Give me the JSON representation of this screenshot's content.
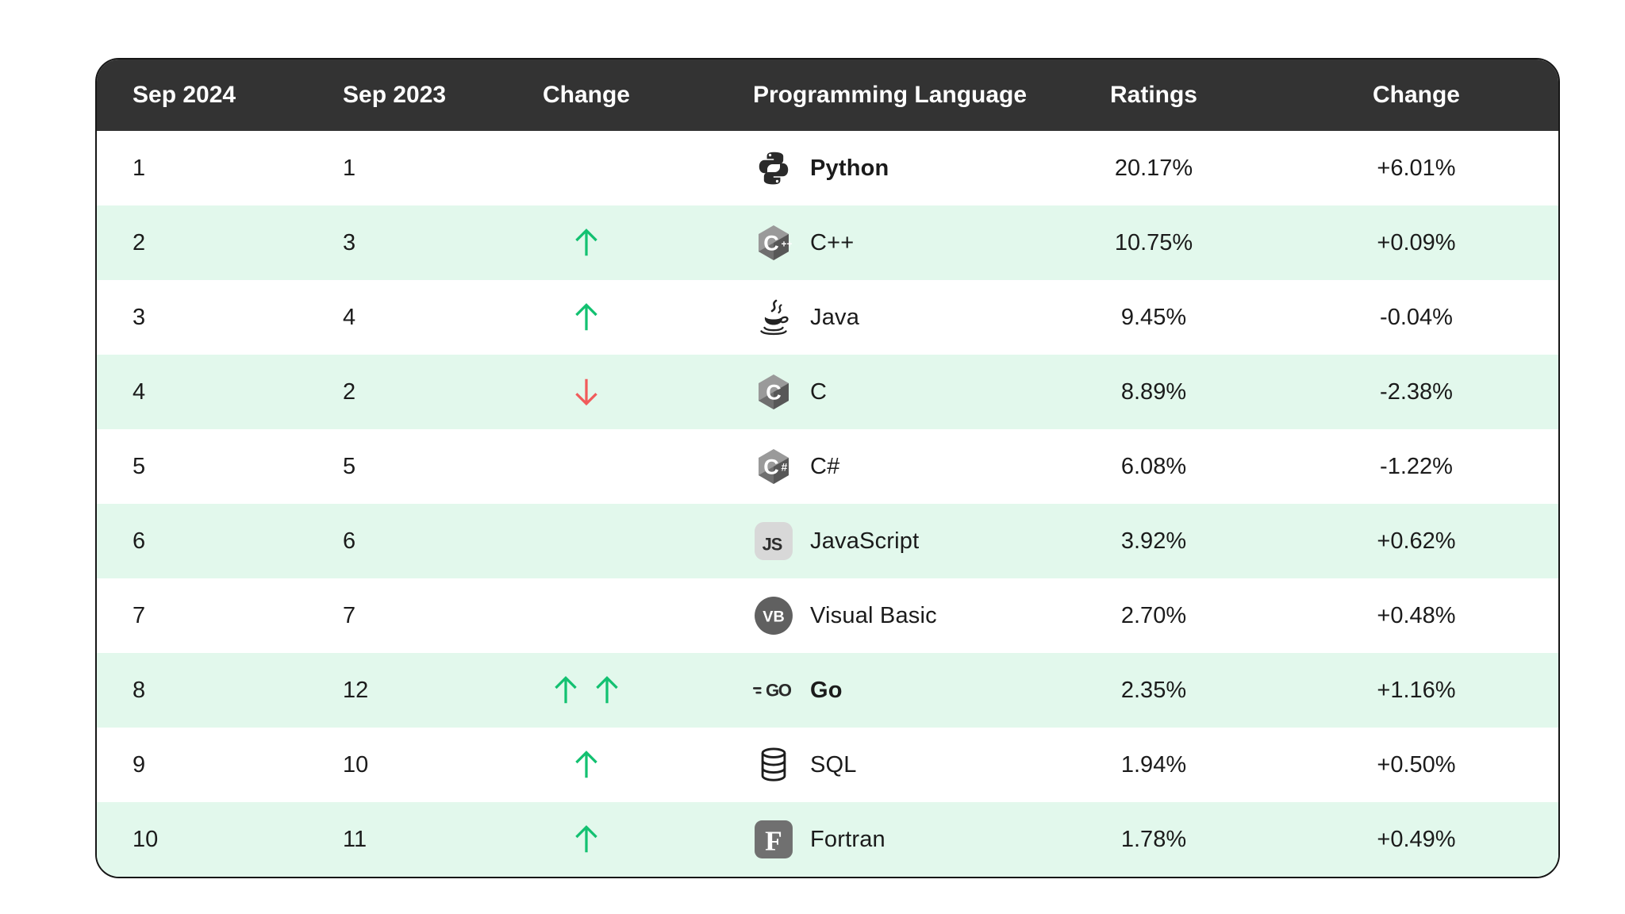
{
  "chart_data": {
    "type": "table",
    "columns": [
      "Sep 2024",
      "Sep 2023",
      "Change",
      "Programming Language",
      "Ratings",
      "Change"
    ],
    "rows": [
      {
        "rank_now": "1",
        "rank_prev": "1",
        "trend": "none",
        "icon": "python-icon",
        "language": "Python",
        "highlight": true,
        "ratings": "20.17%",
        "change": "+6.01%"
      },
      {
        "rank_now": "2",
        "rank_prev": "3",
        "trend": "up",
        "icon": "cpp-icon",
        "language": "C++",
        "highlight": false,
        "ratings": "10.75%",
        "change": "+0.09%"
      },
      {
        "rank_now": "3",
        "rank_prev": "4",
        "trend": "up",
        "icon": "java-icon",
        "language": "Java",
        "highlight": false,
        "ratings": "9.45%",
        "change": "-0.04%"
      },
      {
        "rank_now": "4",
        "rank_prev": "2",
        "trend": "down",
        "icon": "c-icon",
        "language": "C",
        "highlight": false,
        "ratings": "8.89%",
        "change": "-2.38%"
      },
      {
        "rank_now": "5",
        "rank_prev": "5",
        "trend": "none",
        "icon": "csharp-icon",
        "language": "C#",
        "highlight": false,
        "ratings": "6.08%",
        "change": "-1.22%"
      },
      {
        "rank_now": "6",
        "rank_prev": "6",
        "trend": "none",
        "icon": "javascript-icon",
        "language": "JavaScript",
        "highlight": false,
        "ratings": "3.92%",
        "change": "+0.62%"
      },
      {
        "rank_now": "7",
        "rank_prev": "7",
        "trend": "none",
        "icon": "visual-basic-icon",
        "language": "Visual Basic",
        "highlight": false,
        "ratings": "2.70%",
        "change": "+0.48%"
      },
      {
        "rank_now": "8",
        "rank_prev": "12",
        "trend": "up-double",
        "icon": "go-icon",
        "language": "Go",
        "highlight": true,
        "ratings": "2.35%",
        "change": "+1.16%"
      },
      {
        "rank_now": "9",
        "rank_prev": "10",
        "trend": "up",
        "icon": "sql-icon",
        "language": "SQL",
        "highlight": false,
        "ratings": "1.94%",
        "change": "+0.50%"
      },
      {
        "rank_now": "10",
        "rank_prev": "11",
        "trend": "up",
        "icon": "fortran-icon",
        "language": "Fortran",
        "highlight": false,
        "ratings": "1.78%",
        "change": "+0.49%"
      }
    ]
  },
  "colors": {
    "header_bg": "#333333",
    "header_text": "#ffffff",
    "row_bg": "#ffffff",
    "row_alt_bg": "#e2f8ec",
    "text": "#1b1b1b",
    "up_arrow": "#13c171",
    "down_arrow": "#f15b5b",
    "card_border": "#161616"
  }
}
